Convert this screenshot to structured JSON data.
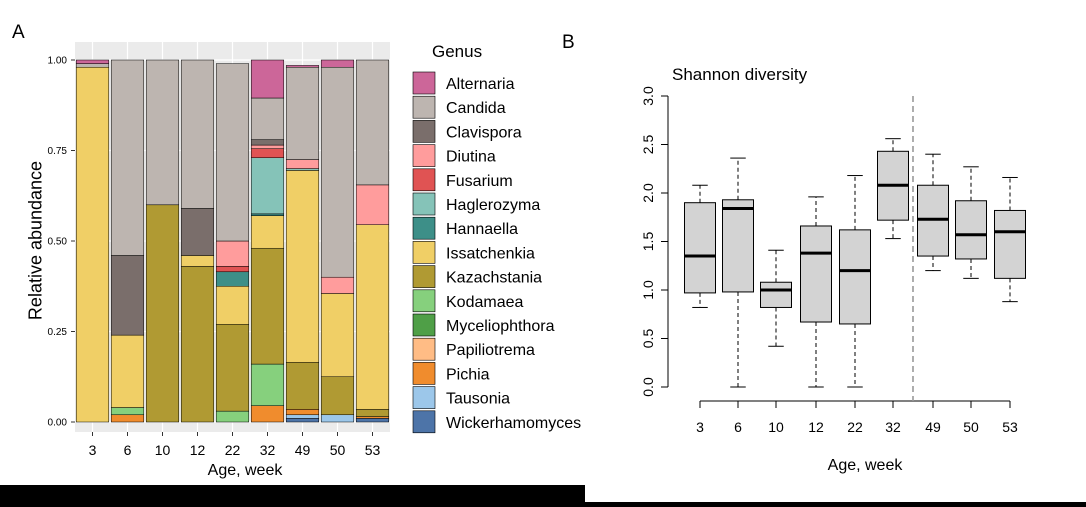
{
  "panel_a_label": "A",
  "panel_b_label": "B",
  "colors": {
    "Alternaria": "#cc6699",
    "Candida": "#bdb5b0",
    "Clavispora": "#7a6e6b",
    "Diutina": "#ff9c9c",
    "Fusarium": "#e05353",
    "Haglerozyma": "#85c3b8",
    "Hannaella": "#3d8f88",
    "Issatchenkia": "#f0cf66",
    "Kazachstania": "#b09a33",
    "Kodamaea": "#86d07d",
    "Myceliophthora": "#4f9f47",
    "Papiliotrema": "#ffbc85",
    "Pichia": "#f08c2d",
    "Tausonia": "#9cc7ea",
    "Wickerhamomyces": "#4d74a8"
  },
  "chart_data": [
    {
      "type": "bar",
      "stacked": true,
      "xlabel": "Age, week",
      "ylabel": "Relative abundance",
      "ylim": [
        0,
        1
      ],
      "yticks": [
        "0.00",
        "0.25",
        "0.50",
        "0.75",
        "1.00"
      ],
      "legend_title": "Genus",
      "legend_position": "right",
      "categories": [
        "3",
        "6",
        "10",
        "12",
        "22",
        "32",
        "49",
        "50",
        "53"
      ],
      "series": [
        {
          "name": "Wickerhamomyces",
          "values": [
            0,
            0,
            0,
            0,
            0,
            0,
            0.01,
            0,
            0.01
          ]
        },
        {
          "name": "Tausonia",
          "values": [
            0,
            0,
            0,
            0,
            0,
            0,
            0.01,
            0.02,
            0
          ]
        },
        {
          "name": "Pichia",
          "values": [
            0,
            0.02,
            0,
            0,
            0,
            0.045,
            0.015,
            0,
            0.005
          ]
        },
        {
          "name": "Papiliotrema",
          "values": [
            0,
            0,
            0,
            0,
            0,
            0,
            0,
            0,
            0
          ]
        },
        {
          "name": "Myceliophthora",
          "values": [
            0,
            0,
            0,
            0,
            0,
            0,
            0,
            0,
            0
          ]
        },
        {
          "name": "Kodamaea",
          "values": [
            0,
            0.02,
            0,
            0,
            0.03,
            0.115,
            0,
            0,
            0
          ]
        },
        {
          "name": "Kazachstania",
          "values": [
            0,
            0,
            0.6,
            0.43,
            0.24,
            0.32,
            0.13,
            0.105,
            0.02
          ]
        },
        {
          "name": "Issatchenkia",
          "values": [
            0.98,
            0.2,
            0,
            0.03,
            0.105,
            0.09,
            0.53,
            0.23,
            0.51
          ]
        },
        {
          "name": "Hannaella",
          "values": [
            0,
            0,
            0,
            0,
            0.04,
            0.005,
            0,
            0,
            0
          ]
        },
        {
          "name": "Haglerozyma",
          "values": [
            0,
            0,
            0,
            0,
            0,
            0.155,
            0.005,
            0,
            0
          ]
        },
        {
          "name": "Fusarium",
          "values": [
            0,
            0,
            0,
            0,
            0.015,
            0.025,
            0,
            0,
            0
          ]
        },
        {
          "name": "Diutina",
          "values": [
            0,
            0,
            0,
            0,
            0.07,
            0.01,
            0.025,
            0.045,
            0.11
          ]
        },
        {
          "name": "Clavispora",
          "values": [
            0,
            0.22,
            0,
            0.13,
            0,
            0.015,
            0,
            0,
            0
          ]
        },
        {
          "name": "Candida",
          "values": [
            0.01,
            0.54,
            0.4,
            0.41,
            0.49,
            0.115,
            0.255,
            0.58,
            0.345
          ]
        },
        {
          "name": "Alternaria",
          "values": [
            0.01,
            0,
            0,
            0,
            0,
            0.105,
            0.005,
            0.02,
            0
          ]
        }
      ]
    },
    {
      "type": "boxplot",
      "title": "Shannon diversity",
      "xlabel": "Age, week",
      "ylim": [
        0,
        3
      ],
      "yticks": [
        "0.0",
        "0.5",
        "1.0",
        "1.5",
        "2.0",
        "2.5",
        "3.0"
      ],
      "categories": [
        "3",
        "6",
        "10",
        "12",
        "22",
        "32",
        "49",
        "50",
        "53"
      ],
      "boxes": [
        {
          "min": 0.82,
          "q1": 0.97,
          "median": 1.35,
          "q3": 1.9,
          "max": 2.08
        },
        {
          "min": 0,
          "q1": 0.98,
          "median": 1.84,
          "q3": 1.93,
          "max": 2.36
        },
        {
          "min": 0.42,
          "q1": 0.82,
          "median": 1.0,
          "q3": 1.08,
          "max": 1.41
        },
        {
          "min": 0,
          "q1": 0.67,
          "median": 1.38,
          "q3": 1.66,
          "max": 1.96
        },
        {
          "min": 0,
          "q1": 0.65,
          "median": 1.2,
          "q3": 1.62,
          "max": 2.18
        },
        {
          "min": 1.53,
          "q1": 1.72,
          "median": 2.08,
          "q3": 2.43,
          "max": 2.56
        },
        {
          "min": 1.2,
          "q1": 1.35,
          "median": 1.73,
          "q3": 2.08,
          "max": 2.4
        },
        {
          "min": 1.12,
          "q1": 1.32,
          "median": 1.57,
          "q3": 1.92,
          "max": 2.27
        },
        {
          "min": 0.88,
          "q1": 1.12,
          "median": 1.6,
          "q3": 1.82,
          "max": 2.16
        }
      ],
      "divider_between": [
        "32",
        "49"
      ]
    }
  ]
}
